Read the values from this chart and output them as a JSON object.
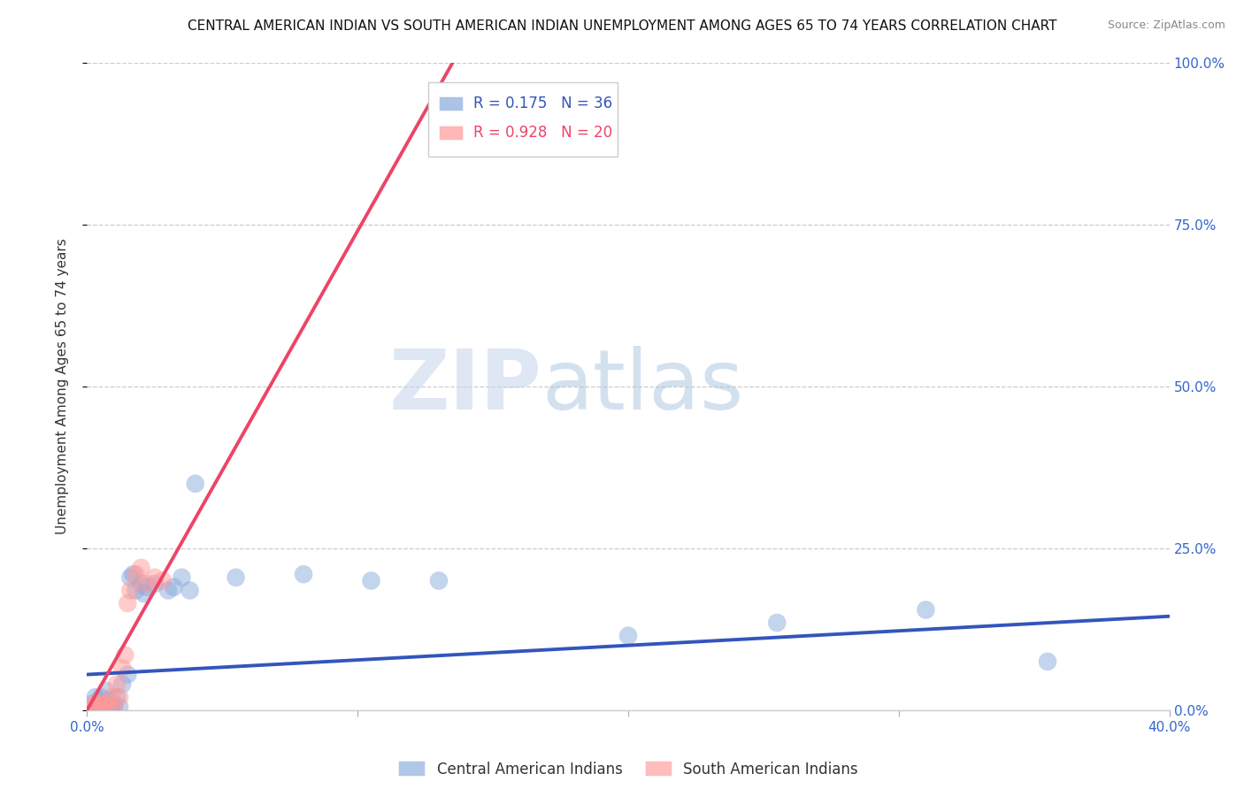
{
  "title": "CENTRAL AMERICAN INDIAN VS SOUTH AMERICAN INDIAN UNEMPLOYMENT AMONG AGES 65 TO 74 YEARS CORRELATION CHART",
  "source": "Source: ZipAtlas.com",
  "ylabel": "Unemployment Among Ages 65 to 74 years",
  "xlim": [
    0.0,
    0.4
  ],
  "ylim": [
    0.0,
    1.0
  ],
  "yticks": [
    0.0,
    0.25,
    0.5,
    0.75,
    1.0
  ],
  "yticklabels_right": [
    "0.0%",
    "25.0%",
    "50.0%",
    "75.0%",
    "100.0%"
  ],
  "xtick_positions": [
    0.0,
    0.1,
    0.2,
    0.3,
    0.4
  ],
  "xticklabels": [
    "0.0%",
    "",
    "",
    "",
    "40.0%"
  ],
  "watermark_zip": "ZIP",
  "watermark_atlas": "atlas",
  "legend_r1": "0.175",
  "legend_n1": "36",
  "legend_r2": "0.928",
  "legend_n2": "20",
  "blue_color": "#88AADD",
  "pink_color": "#FF9999",
  "line_blue_color": "#3355BB",
  "line_pink_color": "#EE4466",
  "blue_points_x": [
    0.002,
    0.003,
    0.004,
    0.005,
    0.005,
    0.006,
    0.007,
    0.007,
    0.008,
    0.008,
    0.009,
    0.01,
    0.011,
    0.012,
    0.013,
    0.015,
    0.016,
    0.017,
    0.018,
    0.02,
    0.021,
    0.022,
    0.025,
    0.03,
    0.032,
    0.035,
    0.038,
    0.04,
    0.055,
    0.08,
    0.105,
    0.13,
    0.2,
    0.255,
    0.31,
    0.355
  ],
  "blue_points_y": [
    0.01,
    0.02,
    0.005,
    0.01,
    0.02,
    0.01,
    0.005,
    0.03,
    0.005,
    0.015,
    0.005,
    0.005,
    0.02,
    0.005,
    0.04,
    0.055,
    0.205,
    0.21,
    0.185,
    0.195,
    0.18,
    0.19,
    0.195,
    0.185,
    0.19,
    0.205,
    0.185,
    0.35,
    0.205,
    0.21,
    0.2,
    0.2,
    0.115,
    0.135,
    0.155,
    0.075
  ],
  "pink_points_x": [
    0.002,
    0.003,
    0.004,
    0.005,
    0.006,
    0.007,
    0.008,
    0.009,
    0.01,
    0.011,
    0.012,
    0.013,
    0.014,
    0.015,
    0.016,
    0.018,
    0.02,
    0.022,
    0.025,
    0.028
  ],
  "pink_points_y": [
    0.005,
    0.01,
    0.005,
    0.01,
    0.005,
    0.01,
    0.005,
    0.02,
    0.005,
    0.04,
    0.02,
    0.065,
    0.085,
    0.165,
    0.185,
    0.21,
    0.22,
    0.195,
    0.205,
    0.2
  ],
  "blue_line_x": [
    0.0,
    0.4
  ],
  "blue_line_y": [
    0.055,
    0.145
  ],
  "pink_line_x": [
    0.0,
    0.135
  ],
  "pink_line_y": [
    0.0,
    1.0
  ],
  "grid_color": "#CCCCCC",
  "background_color": "#FFFFFF",
  "title_fontsize": 11,
  "source_fontsize": 9,
  "axis_label_fontsize": 11,
  "tick_fontsize": 11
}
